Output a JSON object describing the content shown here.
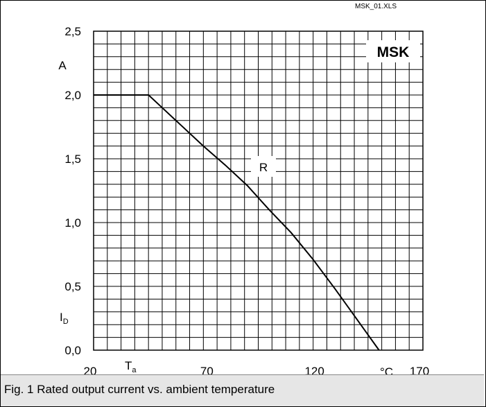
{
  "file_label": "MSK_01.XLS",
  "caption": "Fig. 1 Rated output current vs. ambient temperature",
  "chart_data": {
    "type": "line",
    "title": "",
    "x": [
      20,
      45,
      50,
      60,
      70,
      80,
      90,
      100,
      110,
      120,
      130,
      140,
      150
    ],
    "series": [
      {
        "name": "R",
        "values": [
          2.0,
          2.0,
          1.92,
          1.76,
          1.6,
          1.45,
          1.29,
          1.1,
          0.92,
          0.71,
          0.48,
          0.24,
          0.0
        ]
      }
    ],
    "xlim": [
      20,
      170
    ],
    "ylim": [
      0.0,
      2.5
    ],
    "x_ticks": [
      "20",
      "70",
      "120",
      "170"
    ],
    "y_ticks": [
      "0,0",
      "0,5",
      "1,0",
      "1,5",
      "2,0",
      "2,5"
    ],
    "xlabel_symbol": "T",
    "xlabel_subscript": "a",
    "x_unit": "°C",
    "ylabel_symbol": "I",
    "ylabel_subscript": "D",
    "y_unit": "A",
    "legend_badge": "MSK",
    "series_label": "R",
    "grid": true,
    "grid_x_minor_step": 6.25,
    "grid_y_minor_step": 0.1
  }
}
